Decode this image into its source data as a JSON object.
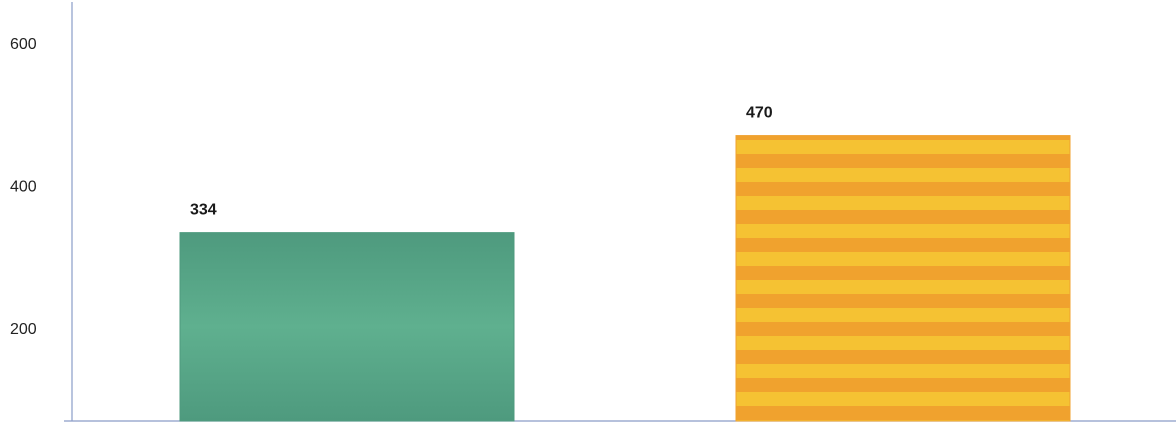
{
  "chart_data": {
    "type": "bar",
    "categories": [
      "",
      ""
    ],
    "values": [
      334,
      470
    ],
    "data_labels": [
      "334",
      "470"
    ],
    "y_ticks": [
      200,
      400,
      600
    ],
    "y_tick_labels": [
      "200",
      "400",
      "600"
    ],
    "ylim": [
      70,
      660
    ],
    "grid": false,
    "legend": "none",
    "title": "",
    "xlabel": "",
    "ylabel": "",
    "colors": {
      "bar_0": "#4e9a7e",
      "bar_0_light": "#5fb08f",
      "bar_1": "#f0a22e",
      "bar_1_light": "#f5c233",
      "axis": "#8a9cc8"
    }
  }
}
